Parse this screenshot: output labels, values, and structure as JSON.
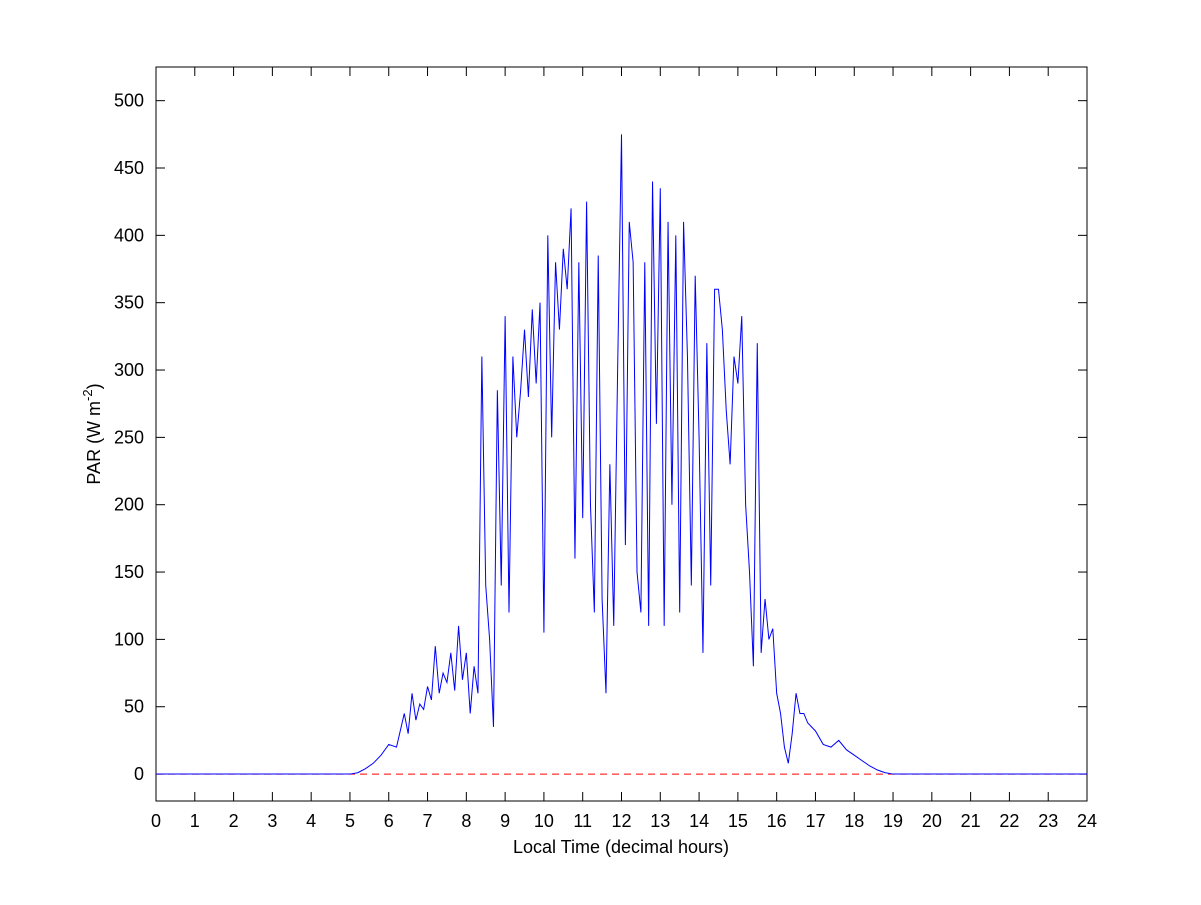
{
  "chart_data": {
    "type": "line",
    "x_label": "Local Time (decimal hours)",
    "y_label": {
      "text": "PAR (W m",
      "sup": "-2",
      "close": ")"
    },
    "xlim": [
      0,
      24
    ],
    "ylim": [
      -20,
      525
    ],
    "xticks": [
      0,
      1,
      2,
      3,
      4,
      5,
      6,
      7,
      8,
      9,
      10,
      11,
      12,
      13,
      14,
      15,
      16,
      17,
      18,
      19,
      20,
      21,
      22,
      23,
      24
    ],
    "yticks": [
      0,
      50,
      100,
      150,
      200,
      250,
      300,
      350,
      400,
      450,
      500
    ],
    "grid": false,
    "reference_line": {
      "y": 0,
      "color": "#ff0000",
      "style": "dashed"
    },
    "series": [
      {
        "color": "#0000ff",
        "x": [
          0,
          5.0,
          5.2,
          5.4,
          5.6,
          5.8,
          6.0,
          6.2,
          6.4,
          6.5,
          6.6,
          6.7,
          6.8,
          6.9,
          7.0,
          7.1,
          7.2,
          7.3,
          7.4,
          7.5,
          7.6,
          7.7,
          7.8,
          7.9,
          8.0,
          8.1,
          8.2,
          8.3,
          8.4,
          8.5,
          8.6,
          8.7,
          8.8,
          8.9,
          9.0,
          9.1,
          9.2,
          9.3,
          9.4,
          9.5,
          9.6,
          9.7,
          9.8,
          9.9,
          10.0,
          10.1,
          10.2,
          10.3,
          10.4,
          10.5,
          10.6,
          10.7,
          10.8,
          10.9,
          11.0,
          11.1,
          11.2,
          11.3,
          11.4,
          11.5,
          11.6,
          11.7,
          11.8,
          11.9,
          12.0,
          12.1,
          12.2,
          12.3,
          12.4,
          12.5,
          12.6,
          12.7,
          12.8,
          12.9,
          13.0,
          13.1,
          13.2,
          13.3,
          13.4,
          13.5,
          13.6,
          13.7,
          13.8,
          13.9,
          14.0,
          14.1,
          14.2,
          14.3,
          14.4,
          14.5,
          14.6,
          14.7,
          14.8,
          14.9,
          15.0,
          15.1,
          15.2,
          15.3,
          15.4,
          15.5,
          15.6,
          15.7,
          15.8,
          15.9,
          16.0,
          16.1,
          16.2,
          16.3,
          16.4,
          16.5,
          16.6,
          16.7,
          16.8,
          17.0,
          17.2,
          17.4,
          17.6,
          17.8,
          18.0,
          18.2,
          18.4,
          18.6,
          18.8,
          19.0,
          24
        ],
        "values": [
          0,
          0,
          1,
          4,
          8,
          14,
          22,
          20,
          45,
          30,
          60,
          40,
          52,
          48,
          65,
          55,
          95,
          60,
          75,
          68,
          90,
          62,
          110,
          70,
          90,
          45,
          80,
          60,
          310,
          140,
          100,
          35,
          285,
          140,
          340,
          120,
          310,
          250,
          285,
          330,
          280,
          345,
          290,
          350,
          105,
          400,
          250,
          380,
          330,
          390,
          360,
          420,
          160,
          380,
          190,
          425,
          200,
          120,
          385,
          130,
          60,
          230,
          110,
          300,
          475,
          170,
          410,
          380,
          150,
          120,
          380,
          110,
          440,
          260,
          435,
          110,
          410,
          200,
          400,
          120,
          410,
          310,
          140,
          370,
          250,
          90,
          320,
          140,
          360,
          360,
          330,
          270,
          230,
          310,
          290,
          340,
          200,
          150,
          80,
          320,
          90,
          130,
          100,
          108,
          60,
          45,
          20,
          8,
          30,
          60,
          45,
          45,
          38,
          32,
          22,
          20,
          25,
          18,
          14,
          10,
          6,
          3,
          1,
          0,
          0
        ]
      }
    ]
  }
}
